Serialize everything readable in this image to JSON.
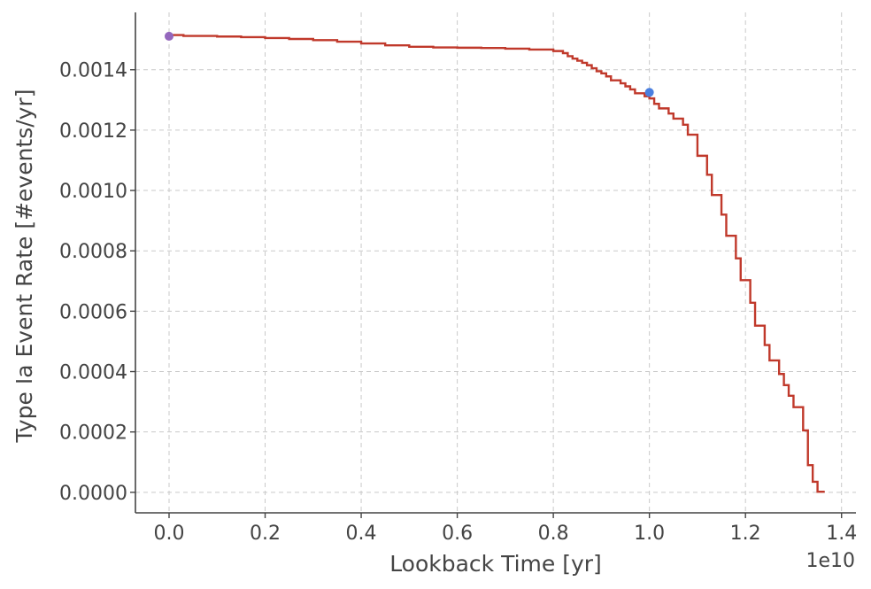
{
  "chart_data": {
    "type": "line",
    "xlabel": "Lookback Time [yr]",
    "ylabel": "Type Ia Event Rate [#events/yr]",
    "x_offset_text": "1e10",
    "xlim": [
      -0.07,
      1.43
    ],
    "ylim": [
      -6.8e-05,
      0.00159
    ],
    "x_ticks": [
      0.0,
      0.2,
      0.4,
      0.6,
      0.8,
      1.0,
      1.2,
      1.4
    ],
    "x_tick_labels": [
      "0.0",
      "0.2",
      "0.4",
      "0.6",
      "0.8",
      "1.0",
      "1.2",
      "1.4"
    ],
    "y_ticks": [
      0.0,
      0.0002,
      0.0004,
      0.0006,
      0.0008,
      0.001,
      0.0012,
      0.0014
    ],
    "y_tick_labels": [
      "0.0000",
      "0.0002",
      "0.0004",
      "0.0006",
      "0.0008",
      "0.0010",
      "0.0012",
      "0.0014"
    ],
    "grid": true,
    "series": [
      {
        "color": "#c0392b",
        "step": "post",
        "points": [
          [
            0.0,
            0.001515
          ],
          [
            0.03,
            0.001512
          ],
          [
            0.1,
            0.00151
          ],
          [
            0.15,
            0.001508
          ],
          [
            0.2,
            0.001505
          ],
          [
            0.25,
            0.001502
          ],
          [
            0.3,
            0.001498
          ],
          [
            0.35,
            0.001493
          ],
          [
            0.4,
            0.001487
          ],
          [
            0.45,
            0.001481
          ],
          [
            0.5,
            0.001476
          ],
          [
            0.55,
            0.001474
          ],
          [
            0.6,
            0.001473
          ],
          [
            0.65,
            0.001472
          ],
          [
            0.7,
            0.00147
          ],
          [
            0.75,
            0.001467
          ],
          [
            0.8,
            0.001462
          ],
          [
            0.82,
            0.001455
          ],
          [
            0.83,
            0.001445
          ],
          [
            0.84,
            0.001437
          ],
          [
            0.85,
            0.00143
          ],
          [
            0.86,
            0.001423
          ],
          [
            0.87,
            0.001415
          ],
          [
            0.88,
            0.001405
          ],
          [
            0.89,
            0.001395
          ],
          [
            0.9,
            0.001388
          ],
          [
            0.91,
            0.001378
          ],
          [
            0.92,
            0.001365
          ],
          [
            0.94,
            0.001355
          ],
          [
            0.95,
            0.001345
          ],
          [
            0.96,
            0.001335
          ],
          [
            0.97,
            0.001322
          ],
          [
            0.99,
            0.001312
          ],
          [
            1.0,
            0.001305
          ],
          [
            1.01,
            0.001287
          ],
          [
            1.02,
            0.001272
          ],
          [
            1.04,
            0.001255
          ],
          [
            1.05,
            0.001238
          ],
          [
            1.07,
            0.001218
          ],
          [
            1.08,
            0.001185
          ],
          [
            1.1,
            0.00118
          ],
          [
            1.1,
            0.001115
          ],
          [
            1.12,
            0.001052
          ],
          [
            1.13,
            0.000985
          ],
          [
            1.15,
            0.00092
          ],
          [
            1.16,
            0.00085
          ],
          [
            1.18,
            0.000775
          ],
          [
            1.19,
            0.000703
          ],
          [
            1.21,
            0.000628
          ],
          [
            1.22,
            0.000552
          ],
          [
            1.24,
            0.000488
          ],
          [
            1.25,
            0.000437
          ],
          [
            1.27,
            0.000392
          ],
          [
            1.28,
            0.000355
          ],
          [
            1.29,
            0.00032
          ],
          [
            1.3,
            0.000282
          ],
          [
            1.32,
            0.000205
          ],
          [
            1.33,
            9e-05
          ],
          [
            1.34,
            3.5e-05
          ],
          [
            1.35,
            2e-06
          ],
          [
            1.365,
            2e-06
          ]
        ]
      }
    ],
    "markers": [
      {
        "x": 0.0,
        "y": 0.001511,
        "color": "#9467bd"
      },
      {
        "x": 1.0,
        "y": 0.001325,
        "color": "#4a7fe0"
      }
    ]
  }
}
